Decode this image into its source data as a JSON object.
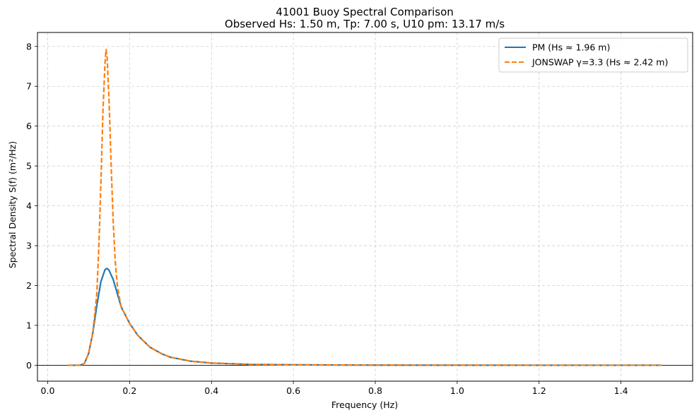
{
  "chart_data": {
    "type": "line",
    "title": "41001 Buoy Spectral Comparison",
    "subtitle": "Observed Hs: 1.50 m, Tp: 7.00 s, U10 pm: 13.17 m/s",
    "xlabel": "Frequency (Hz)",
    "ylabel": "Spectral Density S(f) (m²/Hz)",
    "xlim": [
      -0.025,
      1.575
    ],
    "ylim": [
      -0.4,
      8.35
    ],
    "xticks": [
      0.0,
      0.2,
      0.4,
      0.6,
      0.8,
      1.0,
      1.2,
      1.4
    ],
    "xtick_labels": [
      "0.0",
      "0.2",
      "0.4",
      "0.6",
      "0.8",
      "1.0",
      "1.2",
      "1.4"
    ],
    "yticks": [
      0,
      1,
      2,
      3,
      4,
      5,
      6,
      7,
      8
    ],
    "ytick_labels": [
      "0",
      "1",
      "2",
      "3",
      "4",
      "5",
      "6",
      "7",
      "8"
    ],
    "grid": true,
    "legend_position": "top-right",
    "zero_line": true,
    "series": [
      {
        "name": "PM (Hs ≈ 1.96 m)",
        "color": "#1f77b4",
        "style": "solid",
        "x": [
          0.05,
          0.08,
          0.09,
          0.1,
          0.11,
          0.12,
          0.13,
          0.14,
          0.145,
          0.15,
          0.16,
          0.17,
          0.18,
          0.2,
          0.22,
          0.25,
          0.28,
          0.3,
          0.35,
          0.4,
          0.5,
          0.6,
          0.8,
          1.0,
          1.2,
          1.5
        ],
        "y": [
          0.0,
          0.0,
          0.05,
          0.3,
          0.8,
          1.5,
          2.1,
          2.4,
          2.43,
          2.38,
          2.15,
          1.8,
          1.45,
          1.05,
          0.75,
          0.45,
          0.28,
          0.2,
          0.1,
          0.055,
          0.02,
          0.01,
          0.003,
          0.001,
          0.0,
          0.0
        ]
      },
      {
        "name": "JONSWAP γ=3.3 (Hs ≈ 2.42 m)",
        "color": "#ff7f0e",
        "style": "dashed",
        "x": [
          0.05,
          0.08,
          0.09,
          0.1,
          0.11,
          0.12,
          0.125,
          0.13,
          0.135,
          0.14,
          0.1425,
          0.145,
          0.15,
          0.155,
          0.16,
          0.165,
          0.17,
          0.175,
          0.18,
          0.2,
          0.22,
          0.25,
          0.28,
          0.3,
          0.35,
          0.4,
          0.5,
          0.6,
          0.8,
          1.0,
          1.2,
          1.5
        ],
        "y": [
          0.0,
          0.0,
          0.05,
          0.3,
          0.8,
          1.8,
          3.0,
          4.6,
          6.4,
          7.6,
          7.92,
          7.75,
          6.6,
          5.0,
          3.6,
          2.6,
          2.0,
          1.7,
          1.45,
          1.05,
          0.75,
          0.45,
          0.28,
          0.2,
          0.1,
          0.055,
          0.02,
          0.01,
          0.003,
          0.001,
          0.0,
          0.0
        ]
      }
    ]
  }
}
